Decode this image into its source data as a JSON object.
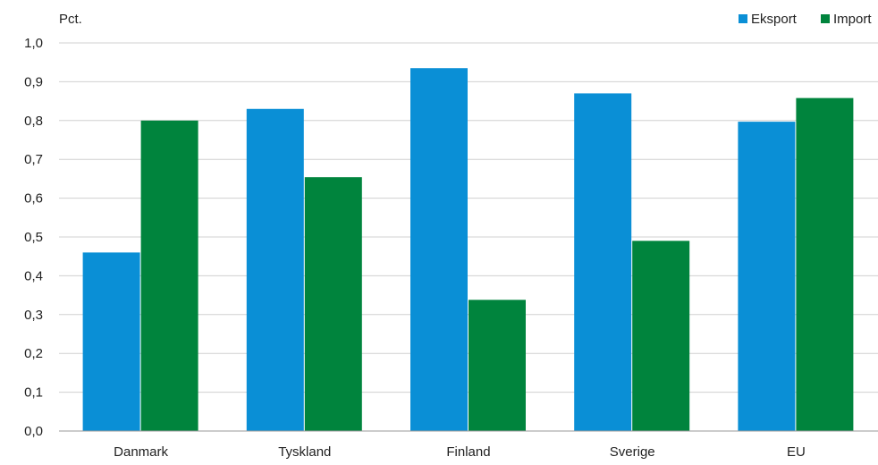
{
  "chart_data": {
    "type": "bar",
    "unit_label": "Pct.",
    "categories": [
      "Danmark",
      "Tyskland",
      "Finland",
      "Sverige",
      "EU"
    ],
    "series": [
      {
        "name": "Eksport",
        "color": "#0a8fd6",
        "values": [
          0.46,
          0.83,
          0.935,
          0.87,
          0.797
        ]
      },
      {
        "name": "Import",
        "color": "#00843d",
        "values": [
          0.8,
          0.654,
          0.338,
          0.49,
          0.858
        ]
      }
    ],
    "ylim": [
      0,
      1.0
    ],
    "yticks": [
      "0,0",
      "0,1",
      "0,2",
      "0,3",
      "0,4",
      "0,5",
      "0,6",
      "0,7",
      "0,8",
      "0,9",
      "1,0"
    ],
    "grid": true,
    "legend_position": "top-right",
    "gridline_color": "#d0d0d0"
  }
}
